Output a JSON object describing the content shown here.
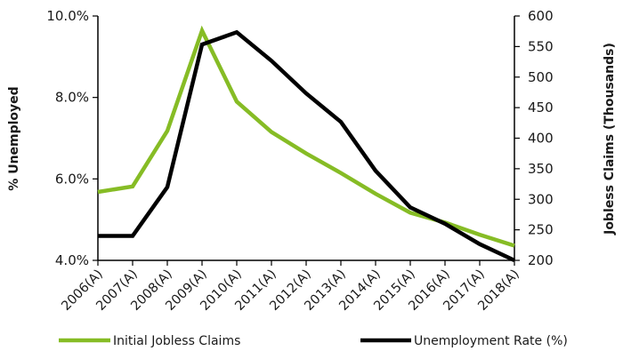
{
  "chart_data": {
    "type": "line",
    "categories": [
      "2006(A)",
      "2007(A)",
      "2008(A)",
      "2009(A)",
      "2010(A)",
      "2011(A)",
      "2012(A)",
      "2013(A)",
      "2014(A)",
      "2015(A)",
      "2016(A)",
      "2017(A)",
      "2018(A)"
    ],
    "y_left": {
      "label": "% Unemployed",
      "ylim": [
        4.0,
        10.0
      ],
      "ticks": [
        "4.0%",
        "6.0%",
        "8.0%",
        "10.0%"
      ],
      "tick_values": [
        4.0,
        6.0,
        8.0,
        10.0
      ]
    },
    "y_right": {
      "label": "Jobless Claims (Thousands)",
      "ylim": [
        200,
        600
      ],
      "ticks": [
        "200",
        "250",
        "300",
        "350",
        "400",
        "450",
        "500",
        "550",
        "600"
      ],
      "tick_values": [
        200,
        250,
        300,
        350,
        400,
        450,
        500,
        550,
        600
      ]
    },
    "series": [
      {
        "name": "Initial Jobless Claims",
        "axis": "right",
        "color": "#86bc25",
        "values": [
          312,
          321,
          412,
          576,
          460,
          410,
          375,
          343,
          309,
          278,
          262,
          242,
          224
        ]
      },
      {
        "name": "Unemployment Rate (%)",
        "axis": "left",
        "color": "#000000",
        "values": [
          4.6,
          4.6,
          5.8,
          9.3,
          9.6,
          8.9,
          8.1,
          7.4,
          6.2,
          5.3,
          4.9,
          4.4,
          4.0
        ]
      }
    ],
    "legend": "bottom",
    "grid": false
  }
}
